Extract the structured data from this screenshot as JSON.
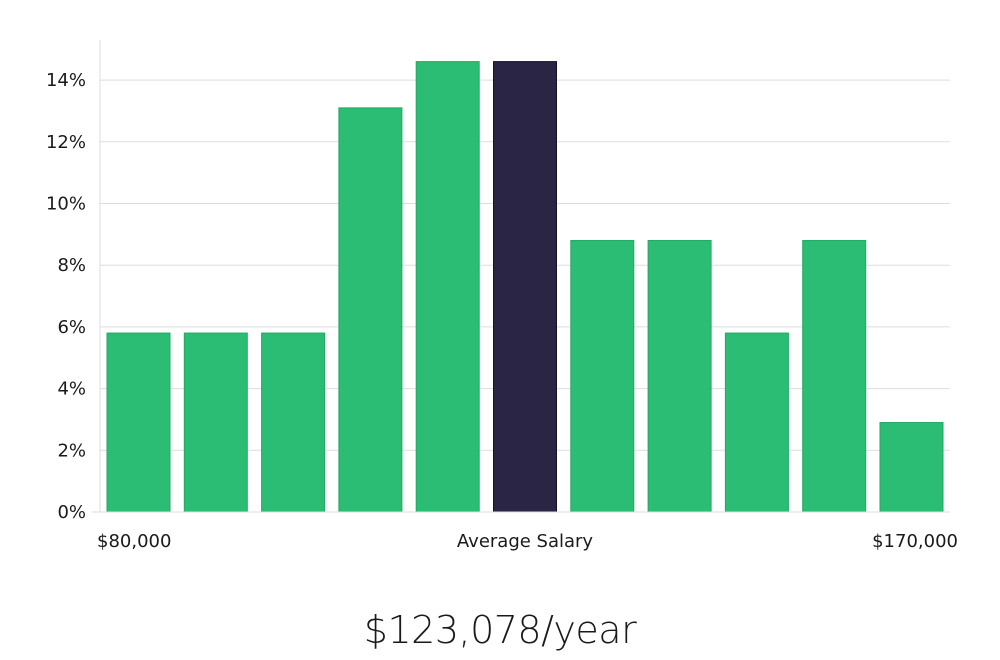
{
  "chart_data": {
    "type": "bar",
    "title": "",
    "xlabel": "Average Salary",
    "ylabel": "",
    "x_range_labels": [
      "$80,000",
      "$170,000"
    ],
    "bins": 11,
    "values": [
      5.8,
      5.8,
      5.8,
      13.1,
      14.6,
      14.6,
      8.8,
      8.8,
      5.8,
      8.8,
      2.9
    ],
    "highlight_index": 5,
    "ylim": [
      0,
      15.3
    ],
    "yticks": [
      0,
      2,
      4,
      6,
      8,
      10,
      12,
      14
    ],
    "ytick_suffix": "%",
    "grid": true,
    "colors": {
      "bar": "#2bbd74",
      "highlight": "#2a2545",
      "grid": "#dddddd",
      "axis": "#dddddd",
      "text": "#1a1a1a"
    }
  },
  "summary": {
    "average_salary_text": "$123,078/year"
  }
}
